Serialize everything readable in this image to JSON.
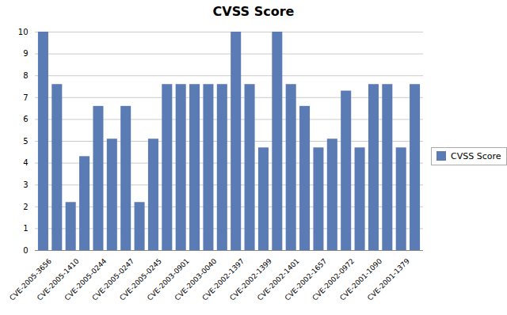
{
  "chart_data": {
    "type": "bar",
    "title": "CVSS Score",
    "categories": [
      "CVE-2005-3656",
      null,
      "CVE-2005-1410",
      null,
      "CVE-2005-0244",
      null,
      "CVE-2005-0247",
      null,
      "CVE-2005-0245",
      null,
      "CVE-2003-0901",
      null,
      "CVE-2003-0040",
      null,
      "CVE-2002-1397",
      null,
      "CVE-2002-1399",
      null,
      "CVE-2002-1401",
      null,
      "CVE-2002-1657",
      null,
      "CVE-2002-0972",
      null,
      "CVE-2001-1090",
      null,
      "CVE-2001-1379",
      null
    ],
    "series": [
      {
        "name": "CVSS Score",
        "color": "#5B7BB5",
        "values": [
          10,
          7.6,
          2.2,
          4.3,
          6.6,
          5.1,
          6.6,
          2.2,
          5.1,
          7.6,
          7.6,
          7.6,
          7.6,
          7.6,
          10,
          7.6,
          4.7,
          10,
          7.6,
          6.6,
          4.7,
          5.1,
          7.3,
          4.7,
          7.6,
          7.6,
          4.7,
          7.6
        ]
      }
    ],
    "ylim": [
      0,
      10
    ],
    "yticks": [
      0,
      1,
      2,
      3,
      4,
      5,
      6,
      7,
      8,
      9,
      10
    ],
    "grid": true,
    "legend": "right"
  }
}
